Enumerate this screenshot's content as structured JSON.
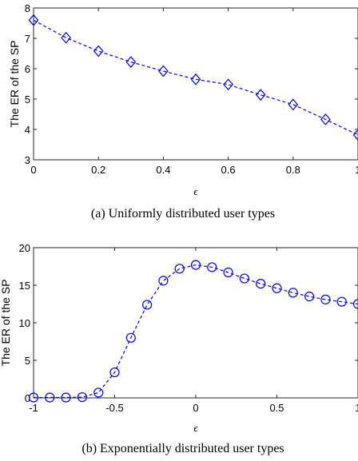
{
  "chart_data": [
    {
      "type": "line",
      "xlabel": "ϵ",
      "ylabel": "The ER of the SP",
      "caption": "(a)  Uniformly distributed user types",
      "xlim": [
        0,
        1
      ],
      "ylim": [
        3,
        8
      ],
      "xticks": [
        0,
        0.2,
        0.4,
        0.6,
        0.8,
        1
      ],
      "xtick_labels": [
        "0",
        "0.2",
        "0.4",
        "0.6",
        "0.8",
        "1"
      ],
      "yticks": [
        3,
        4,
        5,
        6,
        7,
        8
      ],
      "ytick_labels": [
        "3",
        "4",
        "5",
        "6",
        "7",
        "8"
      ],
      "marker": "diamond",
      "line_style": "dashed",
      "color": "#0000ff",
      "grid": false,
      "series": [
        {
          "x": [
            0,
            0.1,
            0.2,
            0.3,
            0.4,
            0.5,
            0.6,
            0.7,
            0.8,
            0.9,
            1.0
          ],
          "y": [
            7.6,
            7.02,
            6.58,
            6.22,
            5.92,
            5.65,
            5.48,
            5.14,
            4.82,
            4.33,
            3.82
          ]
        }
      ]
    },
    {
      "type": "line",
      "xlabel": "ϵ",
      "ylabel": "The ER of the SP",
      "caption": "(b)  Exponentially distributed user types",
      "xlim": [
        -1,
        1
      ],
      "ylim": [
        0,
        20
      ],
      "xticks": [
        -1,
        -0.5,
        0,
        0.5,
        1
      ],
      "xtick_labels": [
        "-1",
        "-0.5",
        "0",
        "0.5",
        "1"
      ],
      "yticks": [
        0,
        5,
        10,
        15,
        20
      ],
      "ytick_labels": [
        "0",
        "5",
        "10",
        "15",
        "20"
      ],
      "marker": "circle",
      "line_style": "dashed",
      "color": "#0000ff",
      "grid": false,
      "series": [
        {
          "x": [
            -1,
            -0.9,
            -0.8,
            -0.7,
            -0.6,
            -0.5,
            -0.4,
            -0.3,
            -0.2,
            -0.1,
            0,
            0.1,
            0.2,
            0.3,
            0.4,
            0.5,
            0.6,
            0.7,
            0.8,
            0.9,
            1.0
          ],
          "y": [
            0.05,
            0.05,
            0.05,
            0.1,
            0.7,
            3.4,
            8.0,
            12.4,
            15.6,
            17.2,
            17.7,
            17.4,
            16.7,
            15.9,
            15.2,
            14.6,
            14.0,
            13.5,
            13.1,
            12.8,
            12.5
          ]
        }
      ]
    }
  ]
}
